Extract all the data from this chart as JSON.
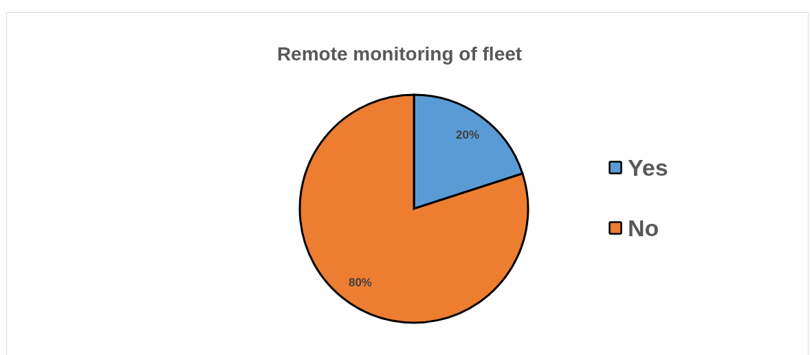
{
  "chart_data": {
    "type": "pie",
    "title": "Remote monitoring of fleet",
    "categories": [
      "Yes",
      "No"
    ],
    "values": [
      20,
      80
    ],
    "colors": [
      "#5b9bd5",
      "#ed7d31"
    ],
    "value_labels": [
      "20%",
      "80%"
    ],
    "legend": "right"
  }
}
